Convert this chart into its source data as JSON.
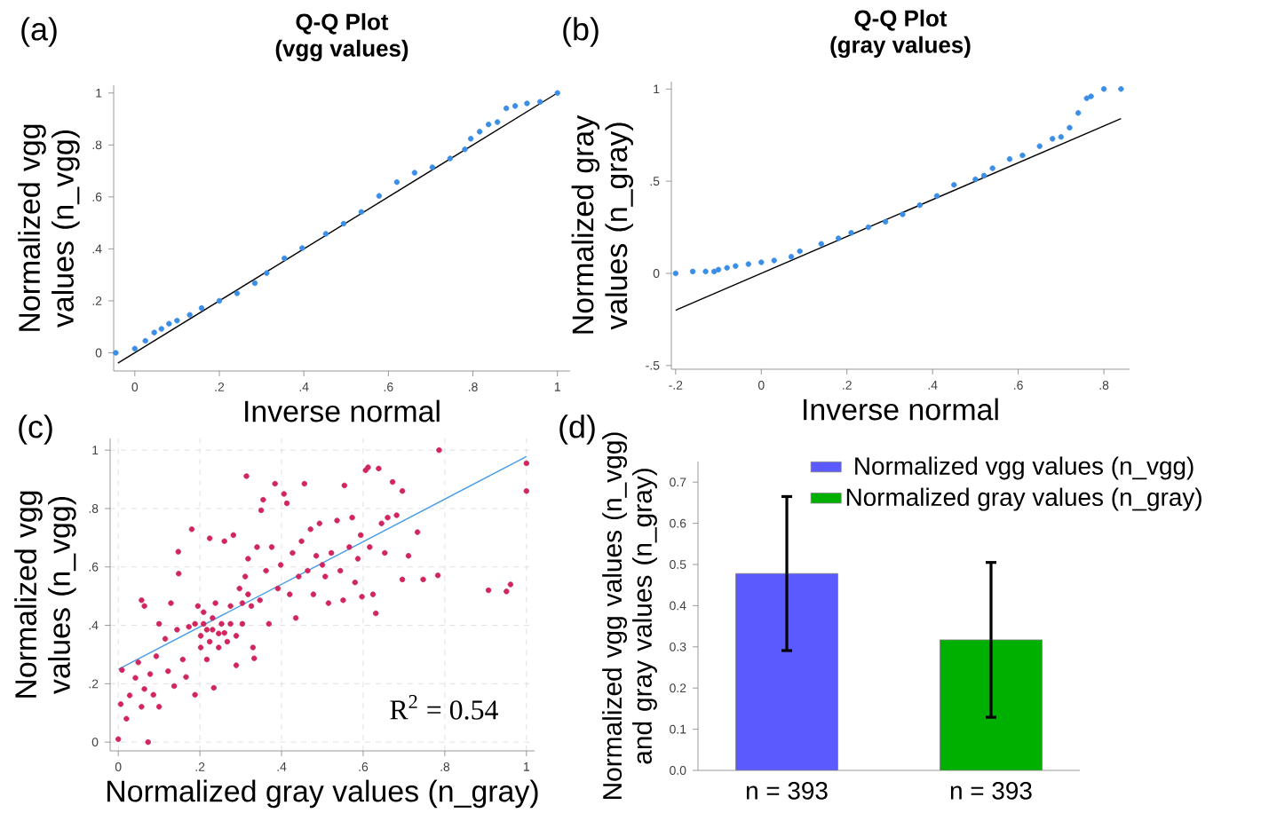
{
  "chart_data": [
    {
      "type": "scatter",
      "title": "Q-Q Plot",
      "subtitle": "(vgg values)",
      "xlabel": "Inverse normal",
      "ylabel": "Normalized vgg values (n_vgg)",
      "annotations": [
        "(a)"
      ],
      "xlim": [
        -0.05,
        1.03
      ],
      "ylim": [
        -0.07,
        1.03
      ],
      "xticks": [
        0,
        {
          "value": 0.2,
          "label": ".2"
        },
        {
          "value": 0.4,
          "label": ".4"
        },
        {
          "value": 0.6,
          "label": ".6"
        },
        {
          "value": 0.8,
          "label": ".8"
        },
        1
      ],
      "yticks": [
        0,
        {
          "value": 0.2,
          "label": ".2"
        },
        {
          "value": 0.4,
          "label": ".4"
        },
        {
          "value": 0.6,
          "label": ".6"
        },
        {
          "value": 0.8,
          "label": ".8"
        },
        1
      ],
      "series": [
        {
          "color": "#3a8ee6",
          "marker": "circle",
          "x": [
            -0.045,
            0,
            0.025,
            0.046,
            0.063,
            0.081,
            0.1,
            0.13,
            0.158,
            0.2,
            0.242,
            0.284,
            0.312,
            0.354,
            0.396,
            0.452,
            0.494,
            0.536,
            0.578,
            0.62,
            0.662,
            0.704,
            0.746,
            0.781,
            0.795,
            0.816,
            0.837,
            0.858,
            0.879,
            0.9,
            0.928,
            0.959,
            1.0
          ],
          "values": [
            0,
            0.016,
            0.046,
            0.078,
            0.092,
            0.112,
            0.124,
            0.146,
            0.172,
            0.2,
            0.229,
            0.268,
            0.307,
            0.364,
            0.403,
            0.458,
            0.497,
            0.542,
            0.604,
            0.657,
            0.693,
            0.714,
            0.748,
            0.783,
            0.824,
            0.851,
            0.879,
            0.888,
            0.941,
            0.95,
            0.96,
            0.966,
            1.0
          ]
        },
        {
          "type": "line",
          "marker": "none",
          "color": "#000000",
          "x": [
            -0.04,
            1.0
          ],
          "values": [
            -0.04,
            1.0
          ]
        }
      ]
    },
    {
      "type": "scatter",
      "title": "Q-Q Plot",
      "subtitle": "(gray values)",
      "xlabel": "Inverse normal",
      "ylabel": "Normalized gray values (n_gray)",
      "annotations": [
        "(b)"
      ],
      "xlim": [
        -0.21,
        0.86
      ],
      "ylim": [
        -0.52,
        1.04
      ],
      "xticks": [
        {
          "value": -0.2,
          "label": "-.2"
        },
        0,
        {
          "value": 0.2,
          "label": ".2"
        },
        {
          "value": 0.4,
          "label": ".4"
        },
        {
          "value": 0.6,
          "label": ".6"
        },
        {
          "value": 0.8,
          "label": ".8"
        }
      ],
      "yticks": [
        {
          "value": -0.5,
          "label": "-.5"
        },
        0,
        {
          "value": 0.5,
          "label": ".5"
        },
        1
      ],
      "series": [
        {
          "color": "#3a8ee6",
          "marker": "circle",
          "x": [
            -0.2,
            -0.16,
            -0.13,
            -0.11,
            -0.1,
            -0.08,
            -0.06,
            -0.03,
            0,
            0.03,
            0.07,
            0.09,
            0.14,
            0.18,
            0.21,
            0.25,
            0.29,
            0.33,
            0.37,
            0.41,
            0.45,
            0.5,
            0.52,
            0.54,
            0.58,
            0.61,
            0.65,
            0.68,
            0.7,
            0.72,
            0.74,
            0.76,
            0.77,
            0.8,
            0.84
          ],
          "values": [
            0,
            0.01,
            0.01,
            0.01,
            0.02,
            0.03,
            0.04,
            0.05,
            0.06,
            0.07,
            0.09,
            0.12,
            0.16,
            0.19,
            0.22,
            0.25,
            0.28,
            0.32,
            0.37,
            0.42,
            0.48,
            0.51,
            0.53,
            0.57,
            0.62,
            0.64,
            0.69,
            0.73,
            0.74,
            0.79,
            0.87,
            0.95,
            0.96,
            1.0,
            1.0
          ]
        },
        {
          "type": "line",
          "marker": "none",
          "color": "#000000",
          "x": [
            -0.2,
            0.84
          ],
          "values": [
            -0.2,
            0.84
          ]
        }
      ]
    },
    {
      "type": "scatter",
      "xlabel": "Normalized gray values (n_gray)",
      "ylabel": "Normalized vgg values (n_vgg)",
      "annotations": [
        "(c)",
        "R$^{2}$ = 0.54"
      ],
      "xlim": [
        -0.02,
        1.02
      ],
      "ylim": [
        -0.03,
        1.04
      ],
      "xticks": [
        0,
        {
          "value": 0.2,
          "label": ".2"
        },
        {
          "value": 0.4,
          "label": ".4"
        },
        {
          "value": 0.6,
          "label": ".6"
        },
        {
          "value": 0.8,
          "label": ".8"
        },
        1
      ],
      "yticks": [
        0,
        {
          "value": 0.2,
          "label": ".2"
        },
        {
          "value": 0.4,
          "label": ".4"
        },
        {
          "value": 0.6,
          "label": ".6"
        },
        {
          "value": 0.8,
          "label": ".8"
        },
        1
      ],
      "grid": true,
      "series": [
        {
          "color": "#d0255f",
          "marker": "circle",
          "x": [
            0,
            0.073,
            0.006,
            0.009,
            0.02,
            0.028,
            0.042,
            0.049,
            0.057,
            0.064,
            0.057,
            0.064,
            0.078,
            0.086,
            0.093,
            0.1,
            0.1,
            0.115,
            0.122,
            0.129,
            0.137,
            0.144,
            0.147,
            0.148,
            0.158,
            0.166,
            0.173,
            0.18,
            0.188,
            0.195,
            0.202,
            0.209,
            0.217,
            0.224,
            0.231,
            0.234,
            0.238,
            0.246,
            0.253,
            0.26,
            0.267,
            0.275,
            0.282,
            0.289,
            0.297,
            0.304,
            0.311,
            0.314,
            0.318,
            0.326,
            0.33,
            0.333,
            0.34,
            0.347,
            0.35,
            0.355,
            0.362,
            0.369,
            0.376,
            0.384,
            0.391,
            0.398,
            0.406,
            0.413,
            0.42,
            0.427,
            0.435,
            0.442,
            0.449,
            0.456,
            0.464,
            0.471,
            0.478,
            0.485,
            0.493,
            0.5,
            0.507,
            0.515,
            0.522,
            0.536,
            0.544,
            0.551,
            0.554,
            0.566,
            0.573,
            0.58,
            0.587,
            0.594,
            0.597,
            0.606,
            0.612,
            0.616,
            0.624,
            0.631,
            0.638,
            0.645,
            0.653,
            0.66,
            0.672,
            0.682,
            0.696,
            0.696,
            0.711,
            0.733,
            0.747,
            0.783,
            0.786,
            0.907,
            0.951,
            0.961,
            1.0,
            1.0,
            0.188,
            0.202,
            0.217,
            0.231,
            0.246,
            0.26,
            0.275,
            0.224,
            0.209,
            0.289,
            0.304,
            0.318
          ],
          "values": [
            0.01,
            0,
            0.13,
            0.247,
            0.08,
            0.16,
            0.22,
            0.273,
            0.121,
            0.182,
            0.486,
            0.466,
            0.233,
            0.162,
            0.294,
            0.405,
            0.121,
            0.354,
            0.243,
            0.476,
            0.192,
            0.385,
            0.652,
            0.577,
            0.283,
            0.223,
            0.395,
            0.729,
            0.162,
            0.466,
            0.324,
            0.405,
            0.283,
            0.698,
            0.385,
            0.186,
            0.476,
            0.372,
            0.405,
            0.688,
            0.344,
            0.466,
            0.709,
            0.263,
            0.526,
            0.405,
            0.567,
            0.911,
            0.628,
            0.466,
            0.324,
            0.287,
            0.668,
            0.486,
            0.794,
            0.83,
            0.587,
            0.405,
            0.668,
            0.885,
            0.526,
            0.607,
            0.85,
            0.818,
            0.506,
            0.648,
            0.425,
            0.567,
            0.688,
            0.885,
            0.587,
            0.729,
            0.506,
            0.638,
            0.749,
            0.607,
            0.567,
            0.476,
            0.648,
            0.759,
            0.587,
            0.486,
            0.879,
            0.668,
            0.769,
            0.547,
            0.628,
            0.709,
            0.498,
            0.931,
            0.941,
            0.668,
            0.506,
            0.441,
            0.937,
            0.749,
            0.648,
            0.769,
            0.891,
            0.777,
            0.86,
            0.557,
            0.638,
            0.719,
            0.557,
            0.571,
            1.0,
            0.52,
            0.516,
            0.54,
            0.955,
            0.86,
            0.405,
            0.364,
            0.385,
            0.425,
            0.324,
            0.374,
            0.405,
            0.344,
            0.445,
            0.364,
            0.476,
            0.506
          ]
        },
        {
          "type": "line",
          "marker": "none",
          "color": "#4a9ee8",
          "x": [
            0,
            1.0
          ],
          "values": [
            0.249,
            0.978
          ]
        }
      ]
    },
    {
      "type": "bar",
      "ylabel": "Normalized vgg values (n_vgg) and gray values (n_gray)",
      "annotations": [
        "(d)"
      ],
      "categories": [
        "n = 393",
        "n = 393"
      ],
      "ylim": [
        0,
        0.75
      ],
      "yticks": [
        {
          "value": 0,
          "label": "0.0"
        },
        {
          "value": 0.1,
          "label": "0.1"
        },
        {
          "value": 0.2,
          "label": "0.2"
        },
        {
          "value": 0.3,
          "label": "0.3"
        },
        {
          "value": 0.4,
          "label": "0.4"
        },
        {
          "value": 0.5,
          "label": "0.5"
        },
        {
          "value": 0.6,
          "label": "0.6"
        },
        {
          "value": 0.7,
          "label": "0.7"
        }
      ],
      "legend": "top right",
      "series": [
        {
          "name": "Normalized vgg values (n_vgg)",
          "color": "#5a5aff",
          "values": [
            0.478,
            null
          ],
          "errors": [
            0.187,
            null
          ]
        },
        {
          "name": "Normalized gray values (n_gray)",
          "color": "#00b000",
          "values": [
            null,
            0.317
          ],
          "errors": [
            null,
            0.188
          ]
        }
      ]
    }
  ]
}
